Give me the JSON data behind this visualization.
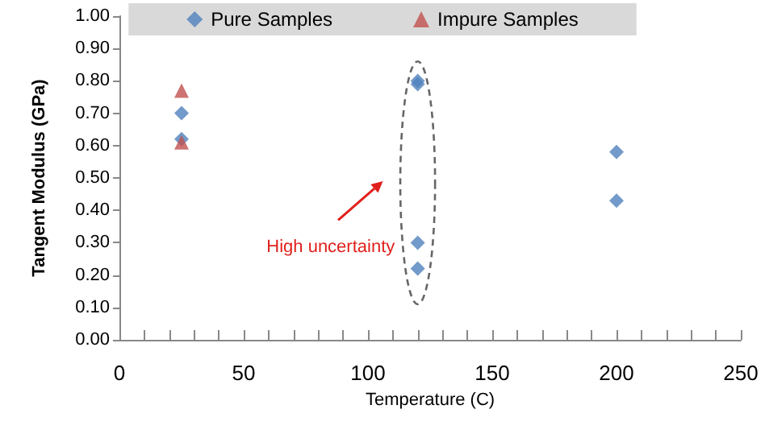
{
  "chart_data": {
    "type": "scatter",
    "xlabel": "Temperature (C)",
    "ylabel": "Tangent Modulus (GPa)",
    "annotations": [
      "High uncertainty"
    ],
    "series": [
      {
        "name": "Pure Samples",
        "color": "#4f81bd",
        "marker": "diamond",
        "x": [
          25,
          25,
          120,
          120,
          120,
          120,
          200,
          200
        ],
        "values": [
          0.7,
          0.62,
          0.8,
          0.79,
          0.3,
          0.22,
          0.58,
          0.43
        ]
      },
      {
        "name": "Impure Samples",
        "color": "#c0504d",
        "marker": "triangle",
        "x": [
          25,
          25
        ],
        "values": [
          0.77,
          0.61
        ]
      }
    ],
    "xlim": [
      0,
      250
    ],
    "xticks": [
      0,
      {
        "value": 10,
        "label": null
      },
      {
        "value": 20,
        "label": null
      },
      {
        "value": 30,
        "label": null
      },
      {
        "value": 40,
        "label": null
      },
      50,
      {
        "value": 60,
        "label": null
      },
      {
        "value": 70,
        "label": null
      },
      {
        "value": 80,
        "label": null
      },
      {
        "value": 90,
        "label": null
      },
      100,
      {
        "value": 110,
        "label": null
      },
      {
        "value": 120,
        "label": null
      },
      {
        "value": 130,
        "label": null
      },
      {
        "value": 140,
        "label": null
      },
      150,
      {
        "value": 160,
        "label": null
      },
      {
        "value": 170,
        "label": null
      },
      {
        "value": 180,
        "label": null
      },
      {
        "value": 190,
        "label": null
      },
      200,
      {
        "value": 210,
        "label": null
      },
      {
        "value": 220,
        "label": null
      },
      {
        "value": 230,
        "label": null
      },
      {
        "value": 240,
        "label": null
      },
      250
    ],
    "ylim": [
      0,
      1
    ],
    "yticks": [
      {
        "value": 0,
        "label": "0.00"
      },
      {
        "value": 0.1,
        "label": "0.10"
      },
      {
        "value": 0.2,
        "label": "0.20"
      },
      {
        "value": 0.3,
        "label": "0.30"
      },
      {
        "value": 0.4,
        "label": "0.40"
      },
      {
        "value": 0.5,
        "label": "0.50"
      },
      {
        "value": 0.6,
        "label": "0.60"
      },
      {
        "value": 0.7,
        "label": "0.70"
      },
      {
        "value": 0.8,
        "label": "0.80"
      },
      {
        "value": 0.9,
        "label": "0.90"
      },
      {
        "value": 1,
        "label": "1.00"
      }
    ],
    "grid": false,
    "legend": "top"
  }
}
